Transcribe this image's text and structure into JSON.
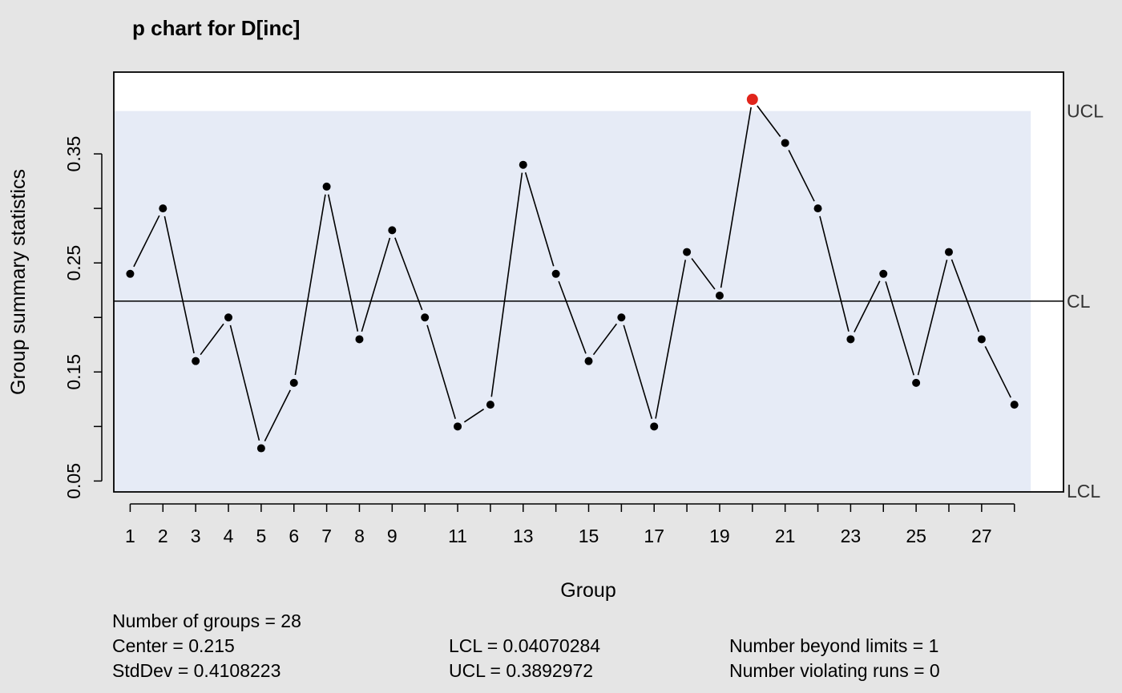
{
  "chart_data": {
    "type": "line",
    "title": "p chart for D[inc]",
    "xlabel": "Group",
    "ylabel": "Group summary statistics",
    "x": [
      1,
      2,
      3,
      4,
      5,
      6,
      7,
      8,
      9,
      10,
      11,
      12,
      13,
      14,
      15,
      16,
      17,
      18,
      19,
      20,
      21,
      22,
      23,
      24,
      25,
      26,
      27,
      28
    ],
    "values": [
      0.24,
      0.3,
      0.16,
      0.2,
      0.08,
      0.14,
      0.32,
      0.18,
      0.28,
      0.2,
      0.1,
      0.12,
      0.34,
      0.24,
      0.16,
      0.2,
      0.1,
      0.26,
      0.22,
      0.4,
      0.36,
      0.3,
      0.18,
      0.24,
      0.14,
      0.26,
      0.18,
      0.12
    ],
    "out_of_control": [
      20
    ],
    "x_ticks": [
      1,
      2,
      3,
      4,
      5,
      6,
      7,
      8,
      9,
      11,
      13,
      15,
      17,
      19,
      21,
      23,
      25,
      27
    ],
    "x_tick_labels": [
      "1",
      "2",
      "3",
      "4",
      "5",
      "6",
      "7",
      "8",
      "9",
      "11",
      "13",
      "15",
      "17",
      "19",
      "21",
      "23",
      "25",
      "27"
    ],
    "y_ticks": [
      0.05,
      0.1,
      0.15,
      0.2,
      0.25,
      0.3,
      0.35
    ],
    "y_tick_labels": [
      "0.05",
      "",
      "0.15",
      "",
      "0.25",
      "",
      "0.35"
    ],
    "xlim": [
      0.5,
      29.5
    ],
    "ylim": [
      0.04,
      0.425
    ],
    "center": 0.215,
    "lcl": 0.04070284,
    "ucl": 0.3892972,
    "limit_labels": {
      "ucl": "UCL",
      "cl": "CL",
      "lcl": "LCL"
    },
    "colors": {
      "background": "#e5e5e5",
      "plot_area": "#ffffff",
      "limit_region": "#e6ebf6",
      "line": "#000000",
      "point": "#000000",
      "violation_point": "#e1251b"
    }
  },
  "stats": {
    "groups": "Number of groups = 28",
    "center": "Center = 0.215",
    "stddev": "StdDev = 0.4108223",
    "lcl": "LCL = 0.04070284",
    "ucl": "UCL = 0.3892972",
    "beyond_limits": "Number beyond limits = 1",
    "violating_runs": "Number violating runs = 0"
  }
}
